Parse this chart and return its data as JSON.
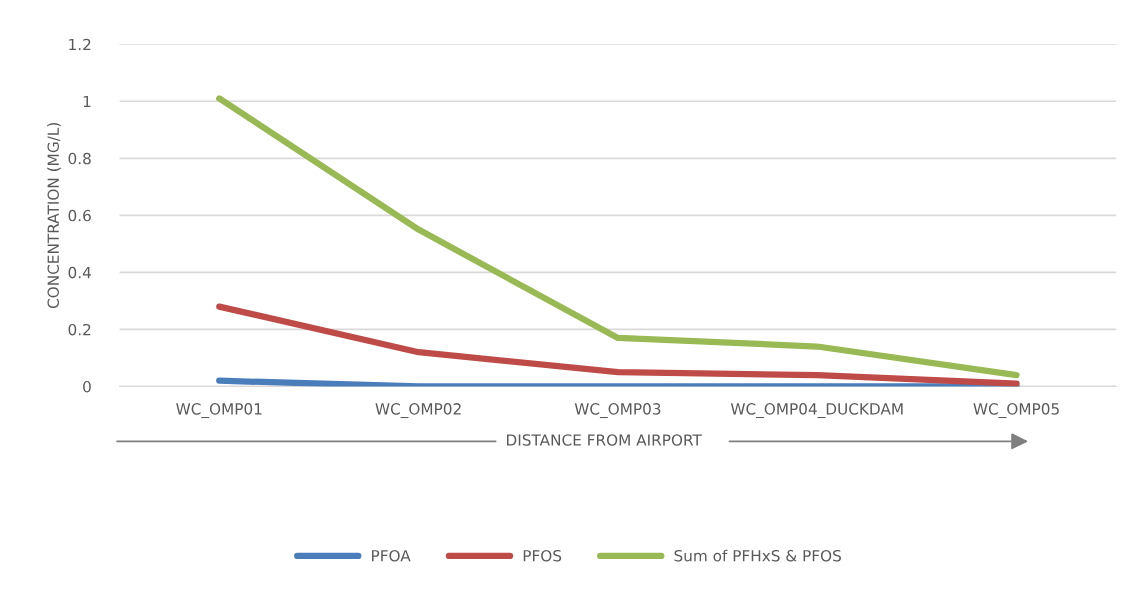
{
  "chart_data": {
    "type": "line",
    "ylabel": "CONCENTRATION (MG/L)",
    "xlabel": "DISTANCE FROM AIRPORT",
    "categories": [
      "WC_OMP01",
      "WC_OMP02",
      "WC_OMP03",
      "WC_OMP04_DUCKDAM",
      "WC_OMP05"
    ],
    "series": [
      {
        "name": "PFOA",
        "color": "#4a7ebb",
        "values": [
          0.02,
          0,
          0,
          0,
          0
        ]
      },
      {
        "name": "PFOS",
        "color": "#be4b48",
        "values": [
          0.28,
          0.12,
          0.05,
          0.04,
          0.01
        ]
      },
      {
        "name": "Sum of PFHxS & PFOS",
        "color": "#98b954",
        "values": [
          1.01,
          0.55,
          0.17,
          0.14,
          0.04
        ]
      }
    ],
    "ylim": [
      0,
      1.2
    ],
    "yticks": [
      0,
      0.2,
      0.4,
      0.6,
      0.8,
      1,
      1.2
    ],
    "grid": "y",
    "legend": "bottom",
    "marker": "none",
    "line_style": "solid"
  }
}
